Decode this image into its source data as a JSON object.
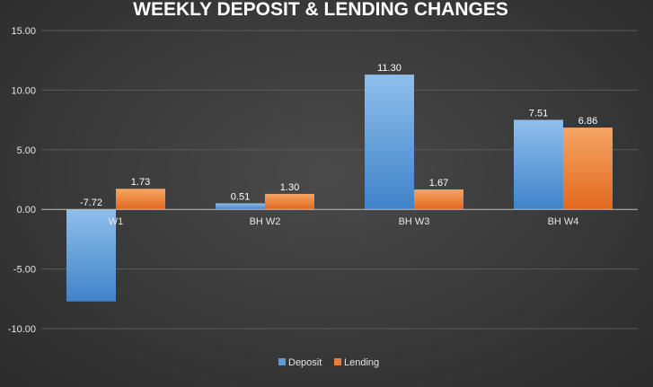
{
  "chart_data": {
    "type": "bar",
    "title": "WEEKLY DEPOSIT & LENDING CHANGES",
    "categories": [
      "W1",
      "BH W2",
      "BH W3",
      "BH W4"
    ],
    "series": [
      {
        "name": "Deposit",
        "values": [
          -7.72,
          0.51,
          11.3,
          7.51
        ],
        "color": "#5b9bd5"
      },
      {
        "name": "Lending",
        "values": [
          1.73,
          1.3,
          1.67,
          6.86
        ],
        "color": "#ed7d31"
      }
    ],
    "ylim": [
      -10,
      15
    ],
    "yticks": [
      "15.00",
      "10.00",
      "5.00",
      "0.00",
      "-5.00",
      "-10.00"
    ],
    "data_labels": [
      [
        "-7.72",
        "0.51",
        "11.30",
        "7.51"
      ],
      [
        "1.73",
        "1.30",
        "1.67",
        "6.86"
      ]
    ],
    "grid": true,
    "legend_position": "bottom"
  }
}
